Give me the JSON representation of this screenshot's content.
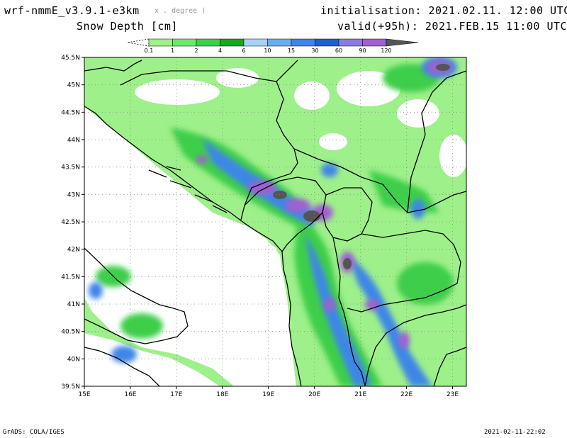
{
  "header": {
    "model": "wrf-nmmE_v3.9.1-e3km",
    "units_note": "x . degree )",
    "field": "Snow Depth [cm]",
    "init": "initialisation: 2021.02.11. 12:00 UTC",
    "valid": "valid(+95h): 2021.FEB.15 11:00 UTC"
  },
  "legend": {
    "labels": [
      "0.1",
      "1",
      "2",
      "4",
      "6",
      "10",
      "15",
      "30",
      "60",
      "90",
      "120"
    ],
    "colors": [
      "#9ef08a",
      "#6ee86a",
      "#3ccf48",
      "#15a81e",
      "#a6d4f6",
      "#6aaef0",
      "#3d86e8",
      "#1f5fd6",
      "#8a7be0",
      "#a060d0",
      "#555555"
    ]
  },
  "map": {
    "lat_labels": [
      "45.5N",
      "45N",
      "44.5N",
      "44N",
      "43.5N",
      "43N",
      "42.5N",
      "42N",
      "41.5N",
      "41N",
      "40.5N",
      "40N",
      "39.5N"
    ],
    "lon_labels": [
      "15E",
      "16E",
      "17E",
      "18E",
      "19E",
      "20E",
      "21E",
      "22E",
      "23E"
    ],
    "lat_values": [
      45.5,
      45,
      44.5,
      44,
      43.5,
      43,
      42.5,
      42,
      41.5,
      41,
      40.5,
      40,
      39.5
    ],
    "lon_values": [
      15,
      16,
      17,
      18,
      19,
      20,
      21,
      22,
      23
    ],
    "lat_range": [
      39.5,
      45.5
    ],
    "lon_range": [
      15,
      23.3
    ]
  },
  "footer": {
    "left": "GrADS: COLA/IGES",
    "right": "2021-02-11-22:02"
  }
}
